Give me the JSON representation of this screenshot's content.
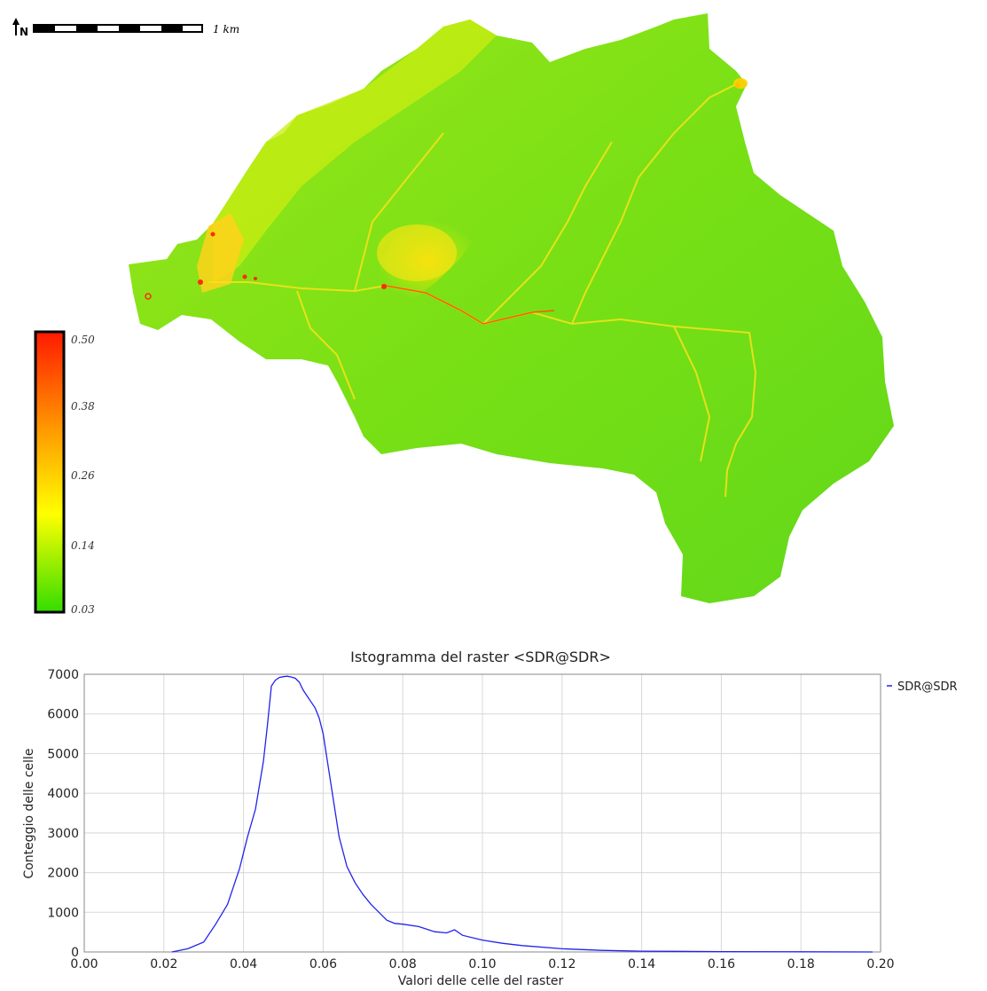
{
  "map": {
    "scale_label": "1 km",
    "north_symbol": "N",
    "legend": {
      "ticks": [
        "0.50",
        "0.38",
        "0.26",
        "0.14",
        "0.03"
      ],
      "colors": {
        "high": "#ff1a00",
        "mid": "#ff9a00",
        "low_mid": "#ffff00",
        "low": "#33dd00"
      }
    },
    "colors": {
      "basin_green": "#6edc18",
      "basin_yellow": "#c6ee0c",
      "channel": "#ffd400",
      "hotspot": "#ff2a00"
    }
  },
  "chart_data": {
    "type": "line",
    "title": "Istogramma del raster <SDR@SDR>",
    "xlabel": "Valori delle celle del raster",
    "ylabel": "Conteggio delle celle",
    "xlim": [
      0.0,
      0.2
    ],
    "ylim": [
      0,
      7000
    ],
    "xticks": [
      "0.00",
      "0.02",
      "0.04",
      "0.06",
      "0.08",
      "0.10",
      "0.12",
      "0.14",
      "0.16",
      "0.18",
      "0.20"
    ],
    "yticks": [
      "0",
      "1000",
      "2000",
      "3000",
      "4000",
      "5000",
      "6000",
      "7000"
    ],
    "grid": true,
    "legend_position": "right",
    "series": [
      {
        "name": "SDR@SDR",
        "color": "#2222ee",
        "x": [
          0.022,
          0.026,
          0.03,
          0.033,
          0.036,
          0.039,
          0.041,
          0.043,
          0.045,
          0.046,
          0.047,
          0.048,
          0.049,
          0.05,
          0.051,
          0.052,
          0.053,
          0.054,
          0.055,
          0.056,
          0.057,
          0.058,
          0.059,
          0.06,
          0.062,
          0.064,
          0.066,
          0.068,
          0.07,
          0.072,
          0.074,
          0.076,
          0.078,
          0.08,
          0.084,
          0.088,
          0.091,
          0.093,
          0.095,
          0.1,
          0.105,
          0.11,
          0.12,
          0.13,
          0.14,
          0.16,
          0.18,
          0.198
        ],
        "y": [
          0,
          80,
          250,
          700,
          1200,
          2100,
          2900,
          3600,
          4800,
          5700,
          6700,
          6850,
          6920,
          6940,
          6950,
          6930,
          6900,
          6800,
          6600,
          6450,
          6300,
          6150,
          5900,
          5500,
          4200,
          2900,
          2150,
          1750,
          1450,
          1200,
          1000,
          800,
          720,
          700,
          640,
          510,
          480,
          560,
          420,
          300,
          220,
          160,
          80,
          40,
          20,
          8,
          4,
          0
        ]
      }
    ]
  }
}
